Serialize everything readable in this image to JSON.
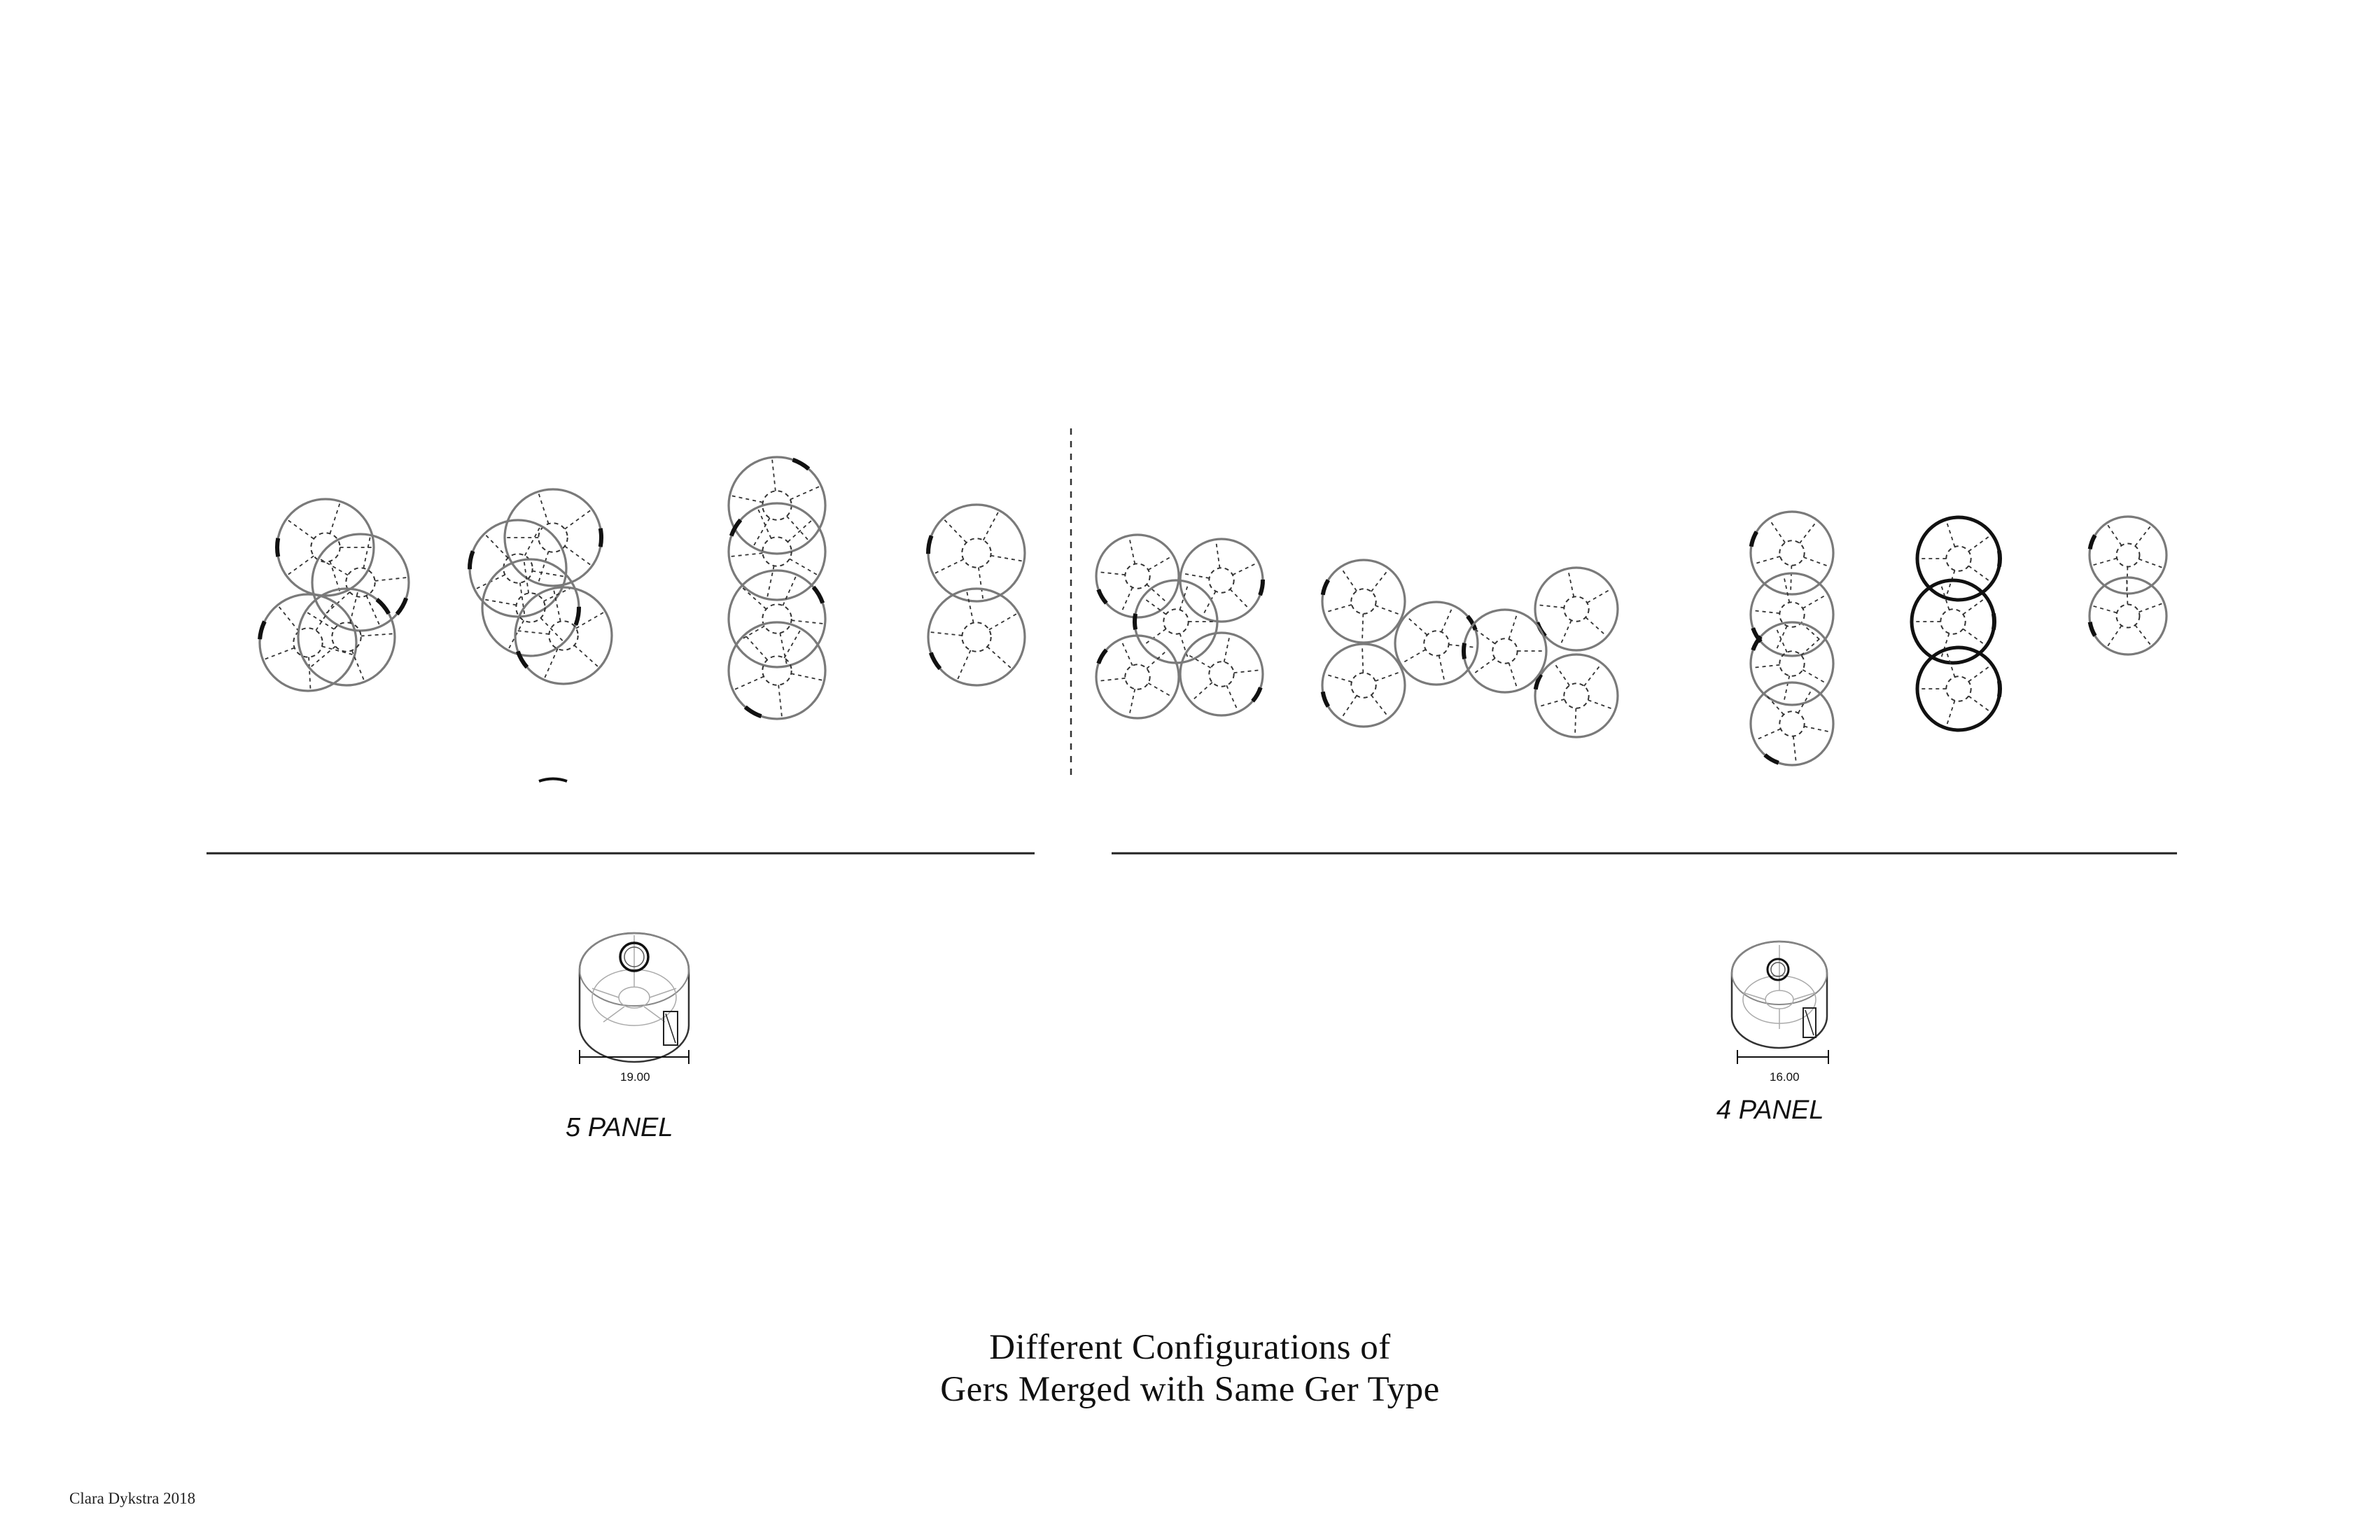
{
  "title": {
    "line1": "Different Configurations of",
    "line2": "Gers Merged with Same Ger Type"
  },
  "types": {
    "five_panel": {
      "label": "5 PANEL",
      "dimension": "19.00"
    },
    "four_panel": {
      "label": "4 PANEL",
      "dimension": "16.00"
    }
  },
  "credit": "Clara Dykstra 2018",
  "colors": {
    "outline": "#7a7a7a",
    "dashed": "#333333",
    "door": "#111111",
    "rule": "#222222"
  }
}
